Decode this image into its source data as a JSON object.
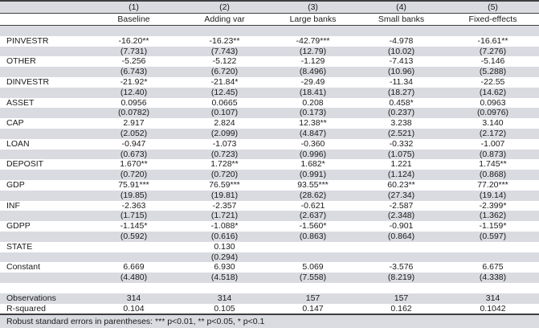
{
  "table_title": "regression-results-table",
  "colors": {
    "stripe": "#d9dbe1",
    "rule_line": "#3e3e40",
    "text": "#1a1a1a",
    "background": "#ffffff"
  },
  "header": {
    "numbers": [
      "(1)",
      "(2)",
      "(3)",
      "(4)",
      "(5)"
    ],
    "names": [
      "Baseline",
      "Adding var",
      "Large banks",
      "Small banks",
      "Fixed-effects"
    ]
  },
  "rows": [
    {
      "label": "",
      "cells": [
        "",
        "",
        "",
        "",
        ""
      ]
    },
    {
      "label": "PINVESTR",
      "cells": [
        "-16.20**",
        "-16.23**",
        "-42.79***",
        "-4.978",
        "-16.61**"
      ]
    },
    {
      "label": "",
      "cells": [
        "(7.731)",
        "(7.743)",
        "(12.79)",
        "(10.02)",
        "(7.276)"
      ]
    },
    {
      "label": "OTHER",
      "cells": [
        "-5.256",
        "-5.122",
        "-1.129",
        "-7.413",
        "-5.146"
      ]
    },
    {
      "label": "",
      "cells": [
        "(6.743)",
        "(6.720)",
        "(8.496)",
        "(10.96)",
        "(5.288)"
      ]
    },
    {
      "label": "DINVESTR",
      "cells": [
        "-21.92*",
        "-21.84*",
        "-29.49",
        "-11.34",
        "-22.55"
      ]
    },
    {
      "label": "",
      "cells": [
        "(12.40)",
        "(12.45)",
        "(18.41)",
        "(18.27)",
        "(14.62)"
      ]
    },
    {
      "label": "ASSET",
      "cells": [
        "0.0956",
        "0.0665",
        "0.208",
        "0.458*",
        "0.0963"
      ]
    },
    {
      "label": "",
      "cells": [
        "(0.0782)",
        "(0.107)",
        "(0.173)",
        "(0.237)",
        "(0.0976)"
      ]
    },
    {
      "label": "CAP",
      "cells": [
        "2.917",
        "2.824",
        "12.38**",
        "3.238",
        "3.140"
      ]
    },
    {
      "label": "",
      "cells": [
        "(2.052)",
        "(2.099)",
        "(4.847)",
        "(2.521)",
        "(2.172)"
      ]
    },
    {
      "label": "LOAN",
      "cells": [
        "-0.947",
        "-1.073",
        "-0.360",
        "-0.332",
        "-1.007"
      ]
    },
    {
      "label": "",
      "cells": [
        "(0.673)",
        "(0.723)",
        "(0.996)",
        "(1.075)",
        "(0.873)"
      ]
    },
    {
      "label": "DEPOSIT",
      "cells": [
        "1.670**",
        "1.728**",
        "1.682*",
        "1.221",
        "1.745**"
      ]
    },
    {
      "label": "",
      "cells": [
        "(0.720)",
        "(0.720)",
        "(0.991)",
        "(1.124)",
        "(0.868)"
      ]
    },
    {
      "label": "GDP",
      "cells": [
        "75.91***",
        "76.59***",
        "93.55***",
        "60.23**",
        "77.20***"
      ]
    },
    {
      "label": "",
      "cells": [
        "(19.85)",
        "(19.81)",
        "(28.62)",
        "(27.34)",
        "(19.14)"
      ]
    },
    {
      "label": "INF",
      "cells": [
        "-2.363",
        "-2.357",
        "-0.621",
        "-2.587",
        "-2.399*"
      ]
    },
    {
      "label": "",
      "cells": [
        "(1.715)",
        "(1.721)",
        "(2.637)",
        "(2.348)",
        "(1.362)"
      ]
    },
    {
      "label": "GDPP",
      "cells": [
        "-1.145*",
        "-1.088*",
        "-1.560*",
        "-0.901",
        "-1.159*"
      ]
    },
    {
      "label": "",
      "cells": [
        "(0.592)",
        "(0.616)",
        "(0.863)",
        "(0.864)",
        "(0.597)"
      ]
    },
    {
      "label": "STATE",
      "cells": [
        "",
        "0.130",
        "",
        "",
        ""
      ]
    },
    {
      "label": "",
      "cells": [
        "",
        "(0.294)",
        "",
        "",
        ""
      ]
    },
    {
      "label": "Constant",
      "cells": [
        "6.669",
        "6.930",
        "5.069",
        "-3.576",
        "6.675"
      ]
    },
    {
      "label": "",
      "cells": [
        "(4.480)",
        "(4.518)",
        "(7.558)",
        "(8.219)",
        "(4.338)"
      ]
    },
    {
      "label": "",
      "cells": [
        "",
        "",
        "",
        "",
        ""
      ]
    },
    {
      "label": "Observations",
      "cells": [
        "314",
        "314",
        "157",
        "157",
        "314"
      ]
    },
    {
      "label": "R-squared",
      "cells": [
        "0.104",
        "0.105",
        "0.147",
        "0.162",
        "0.1042"
      ]
    }
  ],
  "footnote": "Robust standard errors in parentheses: *** p<0.01, ** p<0.05, * p<0.1"
}
